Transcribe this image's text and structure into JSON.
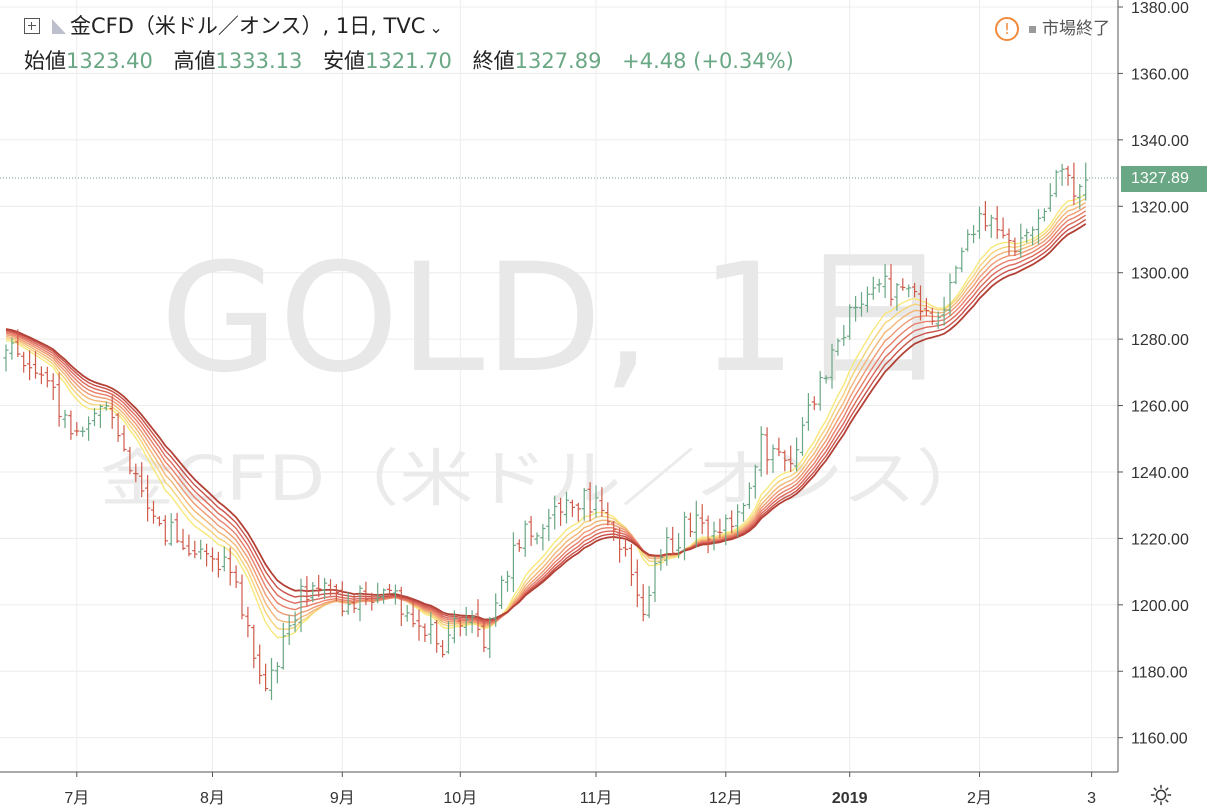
{
  "header": {
    "title": "金CFD（米ドル／オンス）, 1日, TVC",
    "open_label": "始値",
    "open": "1323.40",
    "high_label": "高値",
    "high": "1333.13",
    "low_label": "安値",
    "low": "1321.70",
    "close_label": "終値",
    "close": "1327.89",
    "change": "+4.48 (+0.34%)",
    "status": "市場終了"
  },
  "watermark": {
    "line1": "GOLD, 1日",
    "line2": "金CFD（米ドル／オンス）"
  },
  "last_price_label": "1327.89",
  "colors": {
    "up": "#6aa784",
    "down": "#cf5a4b",
    "grid": "#ececec",
    "ribbon": [
      "#f7e87a",
      "#f6d27a",
      "#f3b677",
      "#ef9a72",
      "#e8806a",
      "#dc6a5c",
      "#c9524a",
      "#b34136"
    ]
  },
  "chart_data": {
    "type": "candlestick",
    "title": "金CFD（米ドル／オンス）, 1日, TVC",
    "y_ticks": [
      "1380.00",
      "1360.00",
      "1340.00",
      "1320.00",
      "1300.00",
      "1280.00",
      "1260.00",
      "1240.00",
      "1220.00",
      "1200.00",
      "1180.00",
      "1160.00"
    ],
    "x_ticks": [
      {
        "label": "7月",
        "bar": 12
      },
      {
        "label": "8月",
        "bar": 35
      },
      {
        "label": "9月",
        "bar": 57
      },
      {
        "label": "10月",
        "bar": 77
      },
      {
        "label": "11月",
        "bar": 100
      },
      {
        "label": "12月",
        "bar": 122
      },
      {
        "label": "2019",
        "bar": 143,
        "bold": true
      },
      {
        "label": "2月",
        "bar": 165
      },
      {
        "label": "3",
        "bar": 184
      }
    ],
    "ylim": [
      1148,
      1382
    ],
    "bars_visible": 184,
    "close_anchors": [
      [
        0,
        1278
      ],
      [
        6,
        1268
      ],
      [
        12,
        1252
      ],
      [
        17,
        1262
      ],
      [
        22,
        1236
      ],
      [
        27,
        1222
      ],
      [
        33,
        1218
      ],
      [
        38,
        1212
      ],
      [
        41,
        1194
      ],
      [
        44,
        1173
      ],
      [
        48,
        1196
      ],
      [
        52,
        1208
      ],
      [
        58,
        1198
      ],
      [
        63,
        1206
      ],
      [
        68,
        1200
      ],
      [
        74,
        1188
      ],
      [
        78,
        1198
      ],
      [
        81,
        1187
      ],
      [
        86,
        1218
      ],
      [
        92,
        1228
      ],
      [
        97,
        1232
      ],
      [
        102,
        1228
      ],
      [
        106,
        1208
      ],
      [
        108,
        1200
      ],
      [
        111,
        1215
      ],
      [
        116,
        1225
      ],
      [
        121,
        1222
      ],
      [
        124,
        1228
      ],
      [
        128,
        1248
      ],
      [
        133,
        1244
      ],
      [
        138,
        1266
      ],
      [
        143,
        1286
      ],
      [
        148,
        1295
      ],
      [
        154,
        1296
      ],
      [
        157,
        1282
      ],
      [
        161,
        1298
      ],
      [
        165,
        1320
      ],
      [
        170,
        1308
      ],
      [
        174,
        1312
      ],
      [
        178,
        1330
      ],
      [
        181,
        1326
      ],
      [
        183,
        1327.89
      ]
    ],
    "last_bar": {
      "open": 1323.4,
      "high": 1333.13,
      "low": 1321.7,
      "close": 1327.89
    },
    "ribbon_periods": [
      10,
      12,
      14,
      16,
      18,
      20,
      22,
      24
    ],
    "last_price": 1327.89
  }
}
